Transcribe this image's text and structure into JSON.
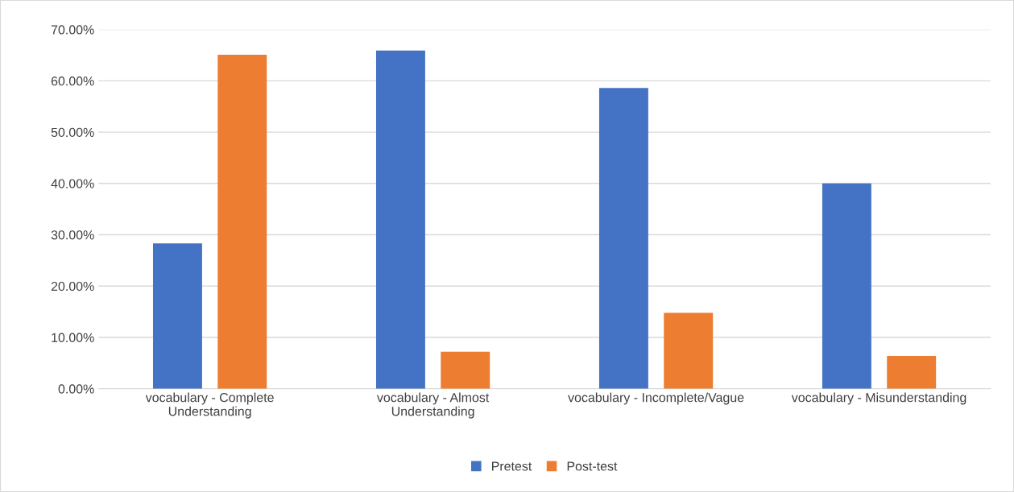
{
  "chart_data": {
    "type": "bar",
    "categories": [
      "vocabulary - Complete\nUnderstanding",
      "vocabulary - Almost\nUnderstanding",
      "vocabulary - Incomplete/Vague",
      "vocabulary - Misunderstanding"
    ],
    "series": [
      {
        "name": "Pretest",
        "color": "#4472c4",
        "values": [
          28.3,
          65.9,
          58.6,
          40.0
        ]
      },
      {
        "name": "Post-test",
        "color": "#ed7d31",
        "values": [
          65.1,
          7.2,
          14.8,
          6.4
        ]
      }
    ],
    "ylim": [
      0,
      70
    ],
    "yticks": [
      {
        "value": 0,
        "label": "0.00%"
      },
      {
        "value": 10,
        "label": "10.00%"
      },
      {
        "value": 20,
        "label": "20.00%"
      },
      {
        "value": 30,
        "label": "30.00%"
      },
      {
        "value": 40,
        "label": "40.00%"
      },
      {
        "value": 50,
        "label": "50.00%"
      },
      {
        "value": 60,
        "label": "60.00%"
      },
      {
        "value": 70,
        "label": "70.00%"
      }
    ],
    "grid": "y",
    "legend": "bottom"
  }
}
